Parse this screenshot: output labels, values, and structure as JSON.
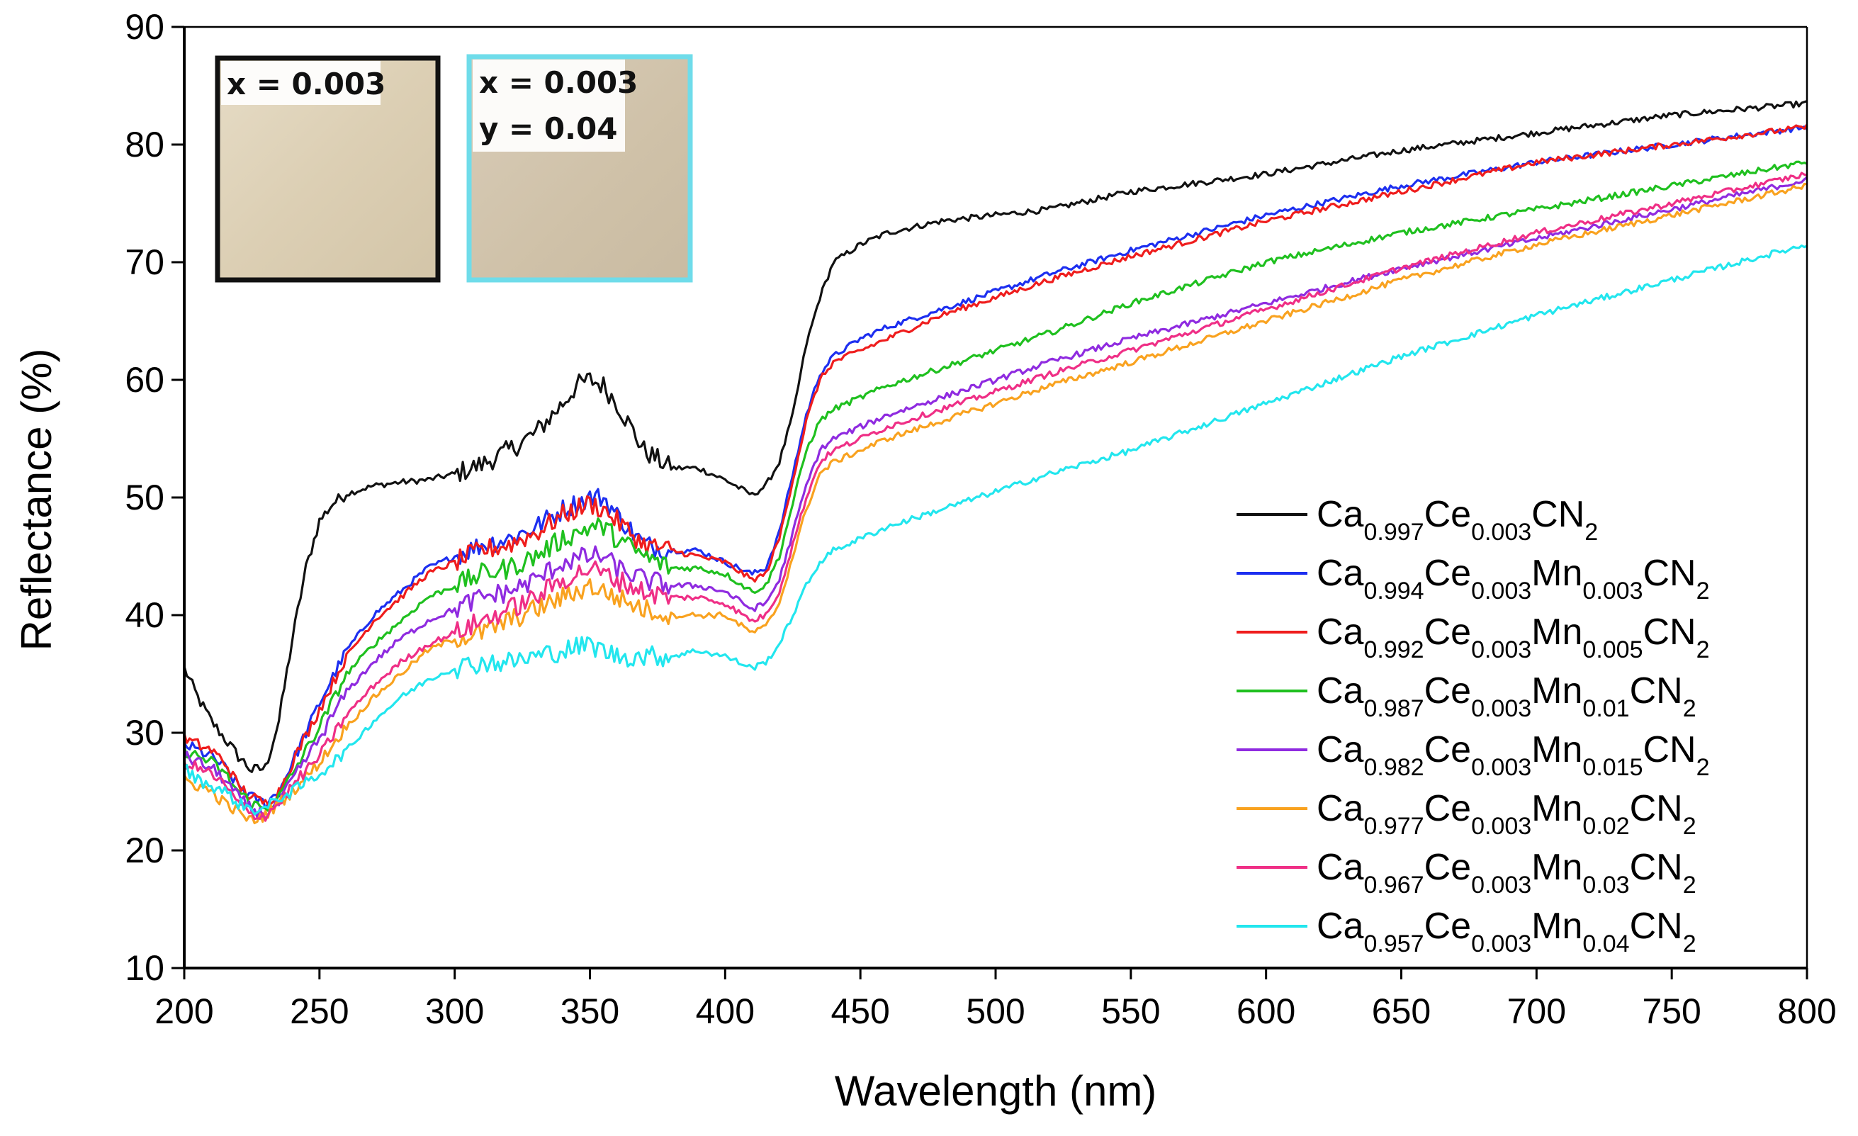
{
  "chart_data": {
    "type": "line",
    "title": "",
    "xlabel": "Wavelength (nm)",
    "ylabel": "Reflectance (%)",
    "xlim": [
      200,
      800
    ],
    "ylim": [
      10,
      90
    ],
    "xticks": [
      "200",
      "250",
      "300",
      "350",
      "400",
      "450",
      "500",
      "550",
      "600",
      "650",
      "700",
      "750",
      "800"
    ],
    "yticks": [
      "10",
      "20",
      "30",
      "40",
      "50",
      "60",
      "70",
      "80",
      "90"
    ],
    "grid": false,
    "legend_position": "right",
    "series": [
      {
        "key": "s1",
        "color": "#111111",
        "legend": {
          "ca": "0.997",
          "ce": "0.003",
          "mn": null
        },
        "x": [
          200,
          205,
          210,
          215,
          220,
          225,
          230,
          235,
          240,
          245,
          250,
          255,
          260,
          270,
          280,
          290,
          300,
          310,
          320,
          330,
          340,
          345,
          350,
          355,
          360,
          365,
          370,
          380,
          390,
          400,
          410,
          415,
          420,
          425,
          430,
          435,
          440,
          450,
          460,
          480,
          500,
          520,
          550,
          600,
          650,
          700,
          750,
          800
        ],
        "y": [
          35.5,
          33,
          31,
          29.5,
          28,
          26.8,
          27,
          31,
          38,
          44,
          48,
          49.5,
          50.3,
          51,
          51.3,
          51.5,
          52,
          52.8,
          54,
          55.5,
          58,
          59.5,
          60,
          59.5,
          58,
          56,
          54,
          52.5,
          52.5,
          51.5,
          50.2,
          51,
          53,
          57,
          63,
          67,
          70,
          71.5,
          72.5,
          73.5,
          74,
          74.5,
          76,
          77.5,
          79.5,
          81,
          82.5,
          83.5
        ]
      },
      {
        "key": "s2",
        "color": "#1d2ff0",
        "legend": {
          "ca": "0.994",
          "ce": "0.003",
          "mn": "0.003"
        },
        "x": [
          200,
          205,
          210,
          215,
          220,
          225,
          230,
          235,
          240,
          250,
          260,
          270,
          280,
          290,
          300,
          310,
          320,
          330,
          340,
          350,
          355,
          360,
          370,
          380,
          390,
          400,
          410,
          415,
          420,
          425,
          430,
          435,
          440,
          450,
          460,
          480,
          500,
          520,
          550,
          600,
          650,
          700,
          750,
          800
        ],
        "y": [
          29,
          28.5,
          28,
          27,
          25.5,
          24.5,
          24,
          25,
          27.5,
          32.5,
          37,
          40,
          42,
          44,
          45,
          46,
          46.5,
          47.5,
          49,
          50,
          50,
          48.5,
          46,
          45.5,
          45.5,
          44.5,
          43.5,
          44,
          47,
          52,
          57,
          60.5,
          62,
          63.5,
          64.5,
          66,
          67.5,
          69,
          71,
          74,
          76.5,
          78.5,
          80,
          81.5
        ]
      },
      {
        "key": "s3",
        "color": "#ef1d1d",
        "legend": {
          "ca": "0.992",
          "ce": "0.003",
          "mn": "0.005"
        },
        "x": [
          200,
          205,
          210,
          215,
          220,
          225,
          230,
          235,
          240,
          250,
          260,
          270,
          280,
          290,
          300,
          310,
          320,
          330,
          340,
          350,
          355,
          360,
          370,
          380,
          390,
          400,
          410,
          415,
          420,
          425,
          430,
          435,
          440,
          450,
          460,
          480,
          500,
          520,
          550,
          600,
          650,
          700,
          750,
          800
        ],
        "y": [
          29.5,
          29,
          28.5,
          27.5,
          25.5,
          24.5,
          24,
          25,
          27.5,
          32,
          36.5,
          39.5,
          41.5,
          43.5,
          44.5,
          45.5,
          46,
          47,
          48.5,
          49.5,
          49,
          48,
          46,
          45.5,
          45,
          44.5,
          43,
          43.5,
          46.5,
          51.5,
          56.5,
          60,
          61.5,
          62.5,
          63.5,
          65.5,
          67,
          68.5,
          70.5,
          73.5,
          76,
          78.5,
          80,
          81.5
        ]
      },
      {
        "key": "s4",
        "color": "#1fc01f",
        "legend": {
          "ca": "0.987",
          "ce": "0.003",
          "mn": "0.01"
        },
        "x": [
          200,
          205,
          210,
          215,
          220,
          225,
          230,
          235,
          240,
          250,
          260,
          270,
          280,
          290,
          300,
          310,
          320,
          330,
          340,
          350,
          355,
          360,
          370,
          380,
          390,
          400,
          410,
          415,
          420,
          425,
          430,
          435,
          440,
          450,
          460,
          480,
          500,
          520,
          550,
          600,
          650,
          700,
          750,
          800
        ],
        "y": [
          28.5,
          28,
          27.5,
          26.5,
          25,
          24,
          23.5,
          24.5,
          26.5,
          30.5,
          35,
          37.5,
          39.5,
          41.5,
          42.5,
          43.5,
          44,
          45,
          46.5,
          47.5,
          47.5,
          46.5,
          45,
          44,
          44,
          43.5,
          42,
          42.5,
          45,
          49.5,
          54,
          56.5,
          57.5,
          58.5,
          59.5,
          61,
          62.5,
          64,
          66.5,
          70,
          72.5,
          74.5,
          76.5,
          78.5
        ]
      },
      {
        "key": "s5",
        "color": "#8f2be0",
        "legend": {
          "ca": "0.982",
          "ce": "0.003",
          "mn": "0.015"
        },
        "x": [
          200,
          205,
          210,
          215,
          220,
          225,
          230,
          235,
          240,
          250,
          260,
          270,
          280,
          290,
          300,
          310,
          320,
          330,
          340,
          350,
          355,
          360,
          370,
          380,
          390,
          400,
          410,
          415,
          420,
          425,
          430,
          435,
          440,
          450,
          460,
          480,
          500,
          520,
          550,
          600,
          650,
          700,
          750,
          800
        ],
        "y": [
          28,
          27.5,
          27,
          26,
          24.5,
          23.5,
          23,
          24,
          26,
          29.5,
          33.5,
          36,
          38,
          39.5,
          40.5,
          41.5,
          42,
          43,
          44.5,
          45,
          45,
          44,
          43,
          42.5,
          42.5,
          42,
          40.5,
          41,
          43,
          47,
          51,
          54,
          55,
          56,
          57,
          58.5,
          60,
          61.5,
          63.5,
          66.5,
          69.5,
          72,
          74.5,
          77
        ]
      },
      {
        "key": "s6",
        "color": "#f9a21f",
        "legend": {
          "ca": "0.977",
          "ce": "0.003",
          "mn": "0.02"
        },
        "x": [
          200,
          205,
          210,
          215,
          220,
          225,
          230,
          235,
          240,
          250,
          260,
          270,
          280,
          290,
          300,
          310,
          320,
          330,
          340,
          350,
          355,
          360,
          370,
          380,
          390,
          400,
          410,
          415,
          420,
          425,
          430,
          435,
          440,
          450,
          460,
          480,
          500,
          520,
          550,
          600,
          650,
          700,
          750,
          800
        ],
        "y": [
          26,
          25.5,
          25,
          24,
          23.2,
          22.5,
          23,
          24,
          25,
          27.5,
          30.5,
          33,
          35,
          37,
          38,
          38.5,
          39.5,
          40.5,
          41.5,
          42.5,
          42,
          41.5,
          40.5,
          40,
          40,
          40,
          38.5,
          39,
          41,
          45,
          49,
          52,
          53,
          54,
          55,
          56.5,
          58,
          59.5,
          61.5,
          65,
          68.5,
          71.5,
          74,
          76.5
        ]
      },
      {
        "key": "s7",
        "color": "#ef2f86",
        "legend": {
          "ca": "0.967",
          "ce": "0.003",
          "mn": "0.03"
        },
        "x": [
          200,
          205,
          210,
          215,
          220,
          225,
          230,
          235,
          240,
          250,
          260,
          270,
          280,
          290,
          300,
          310,
          320,
          330,
          340,
          350,
          355,
          360,
          370,
          380,
          390,
          400,
          410,
          415,
          420,
          425,
          430,
          435,
          440,
          450,
          460,
          480,
          500,
          520,
          550,
          600,
          650,
          700,
          750,
          800
        ],
        "y": [
          27.5,
          27,
          26.5,
          25.5,
          24,
          23,
          23,
          24,
          25.5,
          28,
          31.5,
          34,
          36,
          37.5,
          38.5,
          39.5,
          40.5,
          41.5,
          43,
          44,
          43.5,
          43,
          42,
          41.5,
          41.5,
          41,
          39.5,
          40,
          42,
          46,
          50,
          53,
          54,
          55,
          56,
          57.5,
          59,
          60.5,
          62.5,
          66,
          69.5,
          72.5,
          75,
          77.5
        ]
      },
      {
        "key": "s8",
        "color": "#22e6ee",
        "legend": {
          "ca": "0.957",
          "ce": "0.003",
          "mn": "0.04"
        },
        "x": [
          200,
          205,
          210,
          215,
          220,
          225,
          230,
          235,
          240,
          250,
          260,
          270,
          280,
          290,
          300,
          310,
          320,
          330,
          340,
          350,
          355,
          360,
          370,
          380,
          390,
          400,
          410,
          415,
          420,
          425,
          430,
          435,
          440,
          450,
          460,
          480,
          500,
          520,
          550,
          600,
          650,
          700,
          750,
          800
        ],
        "y": [
          27,
          26,
          25.5,
          25,
          24,
          23.5,
          23.5,
          24.5,
          25,
          26.5,
          28.5,
          31,
          33,
          34.5,
          35.5,
          36,
          36,
          36.5,
          37,
          37.5,
          37,
          36.5,
          36.5,
          36.5,
          37,
          36.5,
          35.5,
          36,
          37.5,
          40,
          42.5,
          44.5,
          45.5,
          46.5,
          47.5,
          49,
          50.5,
          52,
          54,
          58,
          62,
          65.5,
          68.5,
          71.5
        ]
      }
    ]
  },
  "insets": [
    {
      "lines": [
        "x = 0.003"
      ]
    },
    {
      "lines": [
        "x = 0.003",
        "y = 0.04"
      ]
    }
  ]
}
